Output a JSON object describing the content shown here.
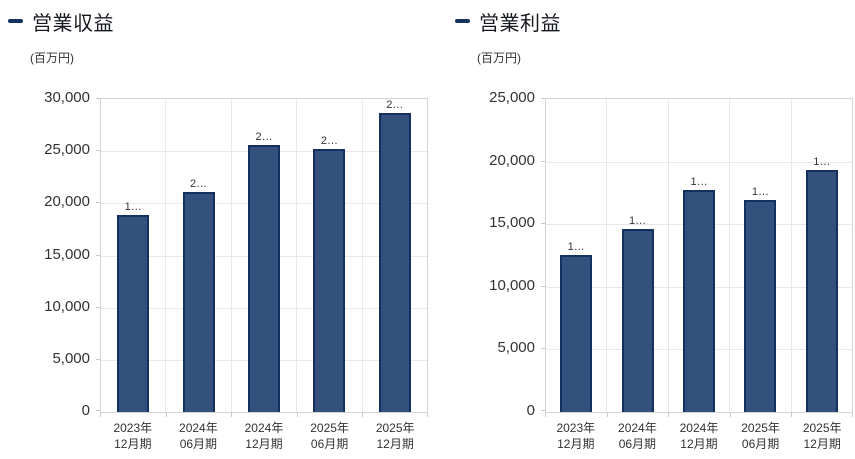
{
  "colors": {
    "bar_fill": "#34517E",
    "bar_border": "#14305E",
    "legend_dash": "#16325F",
    "grid_line": "#E8E8E8",
    "plot_border": "#D4D4D4",
    "axis_tick": "#C9C9C9",
    "text_primary": "#15181D",
    "text_secondary": "#333333"
  },
  "chart_data": [
    {
      "type": "bar",
      "title": "営業収益",
      "unit_label": "(百万円)",
      "categories": [
        [
          "2023年",
          "12月期"
        ],
        [
          "2024年",
          "06月期"
        ],
        [
          "2024年",
          "12月期"
        ],
        [
          "2025年",
          "06月期"
        ],
        [
          "2025年",
          "12月期"
        ]
      ],
      "values": [
        18900,
        21100,
        25600,
        25200,
        28700
      ],
      "bar_labels": [
        "1…",
        "2…",
        "2…",
        "2…",
        "2…"
      ],
      "ylim": [
        0,
        30000
      ],
      "ytick_step": 5000,
      "ytick_labels": [
        "0",
        "5,000",
        "10,000",
        "15,000",
        "20,000",
        "25,000",
        "30,000"
      ],
      "grid": true,
      "legend_position": "top-left"
    },
    {
      "type": "bar",
      "title": "営業利益",
      "unit_label": "(百万円)",
      "categories": [
        [
          "2023年",
          "12月期"
        ],
        [
          "2024年",
          "06月期"
        ],
        [
          "2024年",
          "12月期"
        ],
        [
          "2025年",
          "06月期"
        ],
        [
          "2025年",
          "12月期"
        ]
      ],
      "values": [
        12500,
        14600,
        17700,
        16900,
        19300
      ],
      "bar_labels": [
        "1…",
        "1…",
        "1…",
        "1…",
        "1…"
      ],
      "ylim": [
        0,
        25000
      ],
      "ytick_step": 5000,
      "ytick_labels": [
        "0",
        "5,000",
        "10,000",
        "15,000",
        "20,000",
        "25,000"
      ],
      "grid": true,
      "legend_position": "top-left"
    }
  ]
}
